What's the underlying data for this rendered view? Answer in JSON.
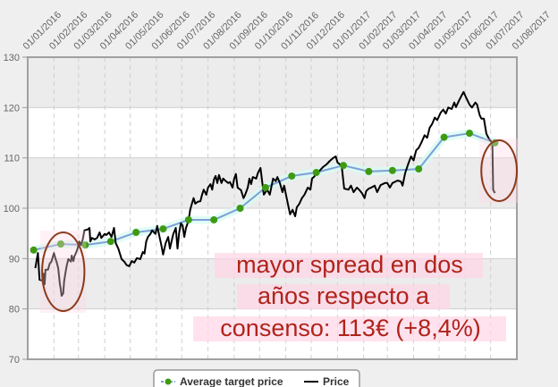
{
  "chart_data": {
    "type": "line",
    "x_type": "date",
    "xlim": [
      "2016-01-01",
      "2017-08-01"
    ],
    "ylim": [
      70,
      130
    ],
    "y_ticks": [
      70,
      80,
      90,
      100,
      110,
      120,
      130
    ],
    "x_tick_labels": [
      "01/01/2016",
      "01/02/2016",
      "01/03/2016",
      "01/04/2016",
      "01/05/2016",
      "01/06/2016",
      "01/07/2016",
      "01/08/2016",
      "01/09/2016",
      "01/10/2016",
      "01/11/2016",
      "01/12/2016",
      "01/01/2017",
      "01/02/2017",
      "01/03/2017",
      "01/04/2017",
      "01/05/2017",
      "01/06/2017",
      "01/07/2017",
      "01/08/2017"
    ],
    "grid": true,
    "legend_position": "bottom",
    "series": [
      {
        "name": "Average target price",
        "color": "#7f9fd8",
        "marker_color": "#3f9a12",
        "points": [
          [
            "2016-01-08",
            91.7
          ],
          [
            "2016-02-09",
            92.9
          ],
          [
            "2016-03-09",
            92.7
          ],
          [
            "2016-04-08",
            93.4
          ],
          [
            "2016-05-08",
            95.2
          ],
          [
            "2016-06-09",
            95.9
          ],
          [
            "2016-07-09",
            97.7
          ],
          [
            "2016-08-08",
            97.7
          ],
          [
            "2016-09-08",
            100.0
          ],
          [
            "2016-10-08",
            104.1
          ],
          [
            "2016-11-08",
            106.4
          ],
          [
            "2016-12-07",
            107.1
          ],
          [
            "2017-01-08",
            108.5
          ],
          [
            "2017-02-07",
            107.3
          ],
          [
            "2017-03-07",
            107.5
          ],
          [
            "2017-04-07",
            107.8
          ],
          [
            "2017-05-07",
            114.1
          ],
          [
            "2017-06-06",
            114.9
          ],
          [
            "2017-07-06",
            113.0
          ]
        ]
      },
      {
        "name": "Price",
        "color": "#000000",
        "points": [
          [
            "2016-01-10",
            88.1
          ],
          [
            "2016-01-13",
            91.1
          ],
          [
            "2016-01-15",
            85.8
          ],
          [
            "2016-01-18",
            85.6
          ],
          [
            "2016-01-20",
            87.0
          ],
          [
            "2016-01-21",
            84.9
          ],
          [
            "2016-01-22",
            87.8
          ],
          [
            "2016-01-25",
            87.8
          ],
          [
            "2016-01-27",
            89.0
          ],
          [
            "2016-01-29",
            89.4
          ],
          [
            "2016-02-01",
            91.1
          ],
          [
            "2016-02-03",
            89.9
          ],
          [
            "2016-02-04",
            89.4
          ],
          [
            "2016-02-06",
            88.1
          ],
          [
            "2016-02-08",
            84.9
          ],
          [
            "2016-02-09",
            84.0
          ],
          [
            "2016-02-10",
            82.6
          ],
          [
            "2016-02-12",
            83.1
          ],
          [
            "2016-02-13",
            85.5
          ],
          [
            "2016-02-15",
            87.6
          ],
          [
            "2016-02-16",
            88.5
          ],
          [
            "2016-02-18",
            89.9
          ],
          [
            "2016-02-21",
            89.4
          ],
          [
            "2016-02-22",
            90.6
          ],
          [
            "2016-02-24",
            89.5
          ],
          [
            "2016-02-25",
            90.4
          ],
          [
            "2016-02-27",
            91.1
          ],
          [
            "2016-02-29",
            92.0
          ],
          [
            "2016-03-02",
            93.4
          ],
          [
            "2016-03-04",
            92.7
          ],
          [
            "2016-03-06",
            93.8
          ],
          [
            "2016-03-08",
            95.6
          ],
          [
            "2016-03-12",
            95.8
          ],
          [
            "2016-03-14",
            96.1
          ],
          [
            "2016-03-15",
            93.4
          ],
          [
            "2016-03-17",
            94.1
          ],
          [
            "2016-03-20",
            93.8
          ],
          [
            "2016-03-23",
            94.1
          ],
          [
            "2016-03-26",
            95.2
          ],
          [
            "2016-03-28",
            94.1
          ],
          [
            "2016-04-01",
            94.9
          ],
          [
            "2016-04-03",
            94.7
          ],
          [
            "2016-04-06",
            95.2
          ],
          [
            "2016-04-09",
            94.3
          ],
          [
            "2016-04-12",
            96.1
          ],
          [
            "2016-04-14",
            93.1
          ],
          [
            "2016-04-17",
            92.0
          ],
          [
            "2016-04-21",
            89.9
          ],
          [
            "2016-04-24",
            89.4
          ],
          [
            "2016-04-27",
            88.7
          ],
          [
            "2016-04-30",
            88.5
          ],
          [
            "2016-05-03",
            89.5
          ],
          [
            "2016-05-06",
            89.2
          ],
          [
            "2016-05-09",
            90.1
          ],
          [
            "2016-05-13",
            89.9
          ],
          [
            "2016-05-16",
            91.3
          ],
          [
            "2016-05-18",
            91.0
          ],
          [
            "2016-05-20",
            93.4
          ],
          [
            "2016-05-22",
            94.3
          ],
          [
            "2016-05-25",
            94.9
          ],
          [
            "2016-05-27",
            95.6
          ],
          [
            "2016-05-31",
            94.9
          ],
          [
            "2016-06-02",
            96.5
          ],
          [
            "2016-06-04",
            94.9
          ],
          [
            "2016-06-07",
            92.6
          ],
          [
            "2016-06-09",
            90.8
          ],
          [
            "2016-06-12",
            93.1
          ],
          [
            "2016-06-15",
            94.3
          ],
          [
            "2016-06-17",
            92.0
          ],
          [
            "2016-06-21",
            94.9
          ],
          [
            "2016-06-24",
            96.1
          ],
          [
            "2016-06-26",
            92.0
          ],
          [
            "2016-06-28",
            95.2
          ],
          [
            "2016-06-30",
            97.0
          ],
          [
            "2016-07-02",
            96.6
          ],
          [
            "2016-07-04",
            94.3
          ],
          [
            "2016-07-06",
            96.1
          ],
          [
            "2016-07-09",
            97.5
          ],
          [
            "2016-07-11",
            99.7
          ],
          [
            "2016-07-13",
            100.9
          ],
          [
            "2016-07-15",
            102.0
          ],
          [
            "2016-07-17",
            100.9
          ],
          [
            "2016-07-20",
            101.3
          ],
          [
            "2016-07-23",
            101.4
          ],
          [
            "2016-07-25",
            102.7
          ],
          [
            "2016-07-27",
            103.7
          ],
          [
            "2016-07-30",
            102.7
          ],
          [
            "2016-08-01",
            104.1
          ],
          [
            "2016-08-04",
            104.8
          ],
          [
            "2016-08-06",
            103.7
          ],
          [
            "2016-08-08",
            105.7
          ],
          [
            "2016-08-10",
            106.4
          ],
          [
            "2016-08-12",
            105.0
          ],
          [
            "2016-08-14",
            106.6
          ],
          [
            "2016-08-17",
            105.0
          ],
          [
            "2016-08-19",
            105.9
          ],
          [
            "2016-08-22",
            105.4
          ],
          [
            "2016-08-25",
            105.0
          ],
          [
            "2016-08-27",
            105.2
          ],
          [
            "2016-08-30",
            104.1
          ],
          [
            "2016-09-01",
            105.9
          ],
          [
            "2016-09-03",
            106.8
          ],
          [
            "2016-09-05",
            104.1
          ],
          [
            "2016-09-09",
            103.6
          ],
          [
            "2016-09-12",
            102.0
          ],
          [
            "2016-09-14",
            102.7
          ],
          [
            "2016-09-17",
            104.1
          ],
          [
            "2016-09-19",
            105.9
          ],
          [
            "2016-09-21",
            104.8
          ],
          [
            "2016-09-23",
            106.2
          ],
          [
            "2016-09-27",
            105.9
          ],
          [
            "2016-09-29",
            107.0
          ],
          [
            "2016-10-02",
            108.0
          ],
          [
            "2016-10-06",
            102.7
          ],
          [
            "2016-10-10",
            103.7
          ],
          [
            "2016-10-13",
            102.7
          ],
          [
            "2016-10-17",
            105.9
          ],
          [
            "2016-10-20",
            105.4
          ],
          [
            "2016-10-22",
            106.2
          ],
          [
            "2016-10-25",
            105.0
          ],
          [
            "2016-10-28",
            103.2
          ],
          [
            "2016-10-30",
            104.5
          ],
          [
            "2016-11-02",
            102.0
          ],
          [
            "2016-11-06",
            98.8
          ],
          [
            "2016-11-09",
            99.7
          ],
          [
            "2016-11-12",
            98.4
          ],
          [
            "2016-11-14",
            100.2
          ],
          [
            "2016-11-17",
            100.9
          ],
          [
            "2016-11-20",
            102.0
          ],
          [
            "2016-11-23",
            102.7
          ],
          [
            "2016-11-27",
            104.1
          ],
          [
            "2016-11-30",
            103.7
          ],
          [
            "2016-12-02",
            105.9
          ],
          [
            "2016-12-04",
            106.2
          ],
          [
            "2016-12-07",
            106.8
          ],
          [
            "2016-12-10",
            107.3
          ],
          [
            "2016-12-15",
            108.2
          ],
          [
            "2016-12-19",
            108.7
          ],
          [
            "2016-12-23",
            109.4
          ],
          [
            "2016-12-27",
            110.0
          ],
          [
            "2016-12-30",
            110.3
          ],
          [
            "2017-01-01",
            109.1
          ],
          [
            "2017-01-06",
            108.4
          ],
          [
            "2017-01-09",
            103.9
          ],
          [
            "2017-01-14",
            103.7
          ],
          [
            "2017-01-17",
            104.5
          ],
          [
            "2017-01-20",
            103.2
          ],
          [
            "2017-01-24",
            104.1
          ],
          [
            "2017-01-27",
            103.6
          ],
          [
            "2017-01-30",
            103.0
          ],
          [
            "2017-02-02",
            102.0
          ],
          [
            "2017-02-04",
            103.4
          ],
          [
            "2017-02-07",
            103.9
          ],
          [
            "2017-02-10",
            104.1
          ],
          [
            "2017-02-14",
            104.5
          ],
          [
            "2017-02-17",
            103.2
          ],
          [
            "2017-02-21",
            104.6
          ],
          [
            "2017-02-26",
            105.0
          ],
          [
            "2017-03-01",
            105.0
          ],
          [
            "2017-03-04",
            104.1
          ],
          [
            "2017-03-07",
            105.0
          ],
          [
            "2017-03-13",
            105.5
          ],
          [
            "2017-03-17",
            105.3
          ],
          [
            "2017-03-19",
            104.5
          ],
          [
            "2017-03-22",
            107.0
          ],
          [
            "2017-03-26",
            109.0
          ],
          [
            "2017-03-29",
            110.3
          ],
          [
            "2017-04-01",
            109.5
          ],
          [
            "2017-04-04",
            111.5
          ],
          [
            "2017-04-07",
            112.0
          ],
          [
            "2017-04-10",
            113.0
          ],
          [
            "2017-04-14",
            114.5
          ],
          [
            "2017-04-17",
            114.0
          ],
          [
            "2017-04-20",
            116.0
          ],
          [
            "2017-04-23",
            116.8
          ],
          [
            "2017-04-26",
            118.0
          ],
          [
            "2017-04-29",
            117.5
          ],
          [
            "2017-05-03",
            119.0
          ],
          [
            "2017-05-06",
            119.6
          ],
          [
            "2017-05-09",
            118.8
          ],
          [
            "2017-05-12",
            120.0
          ],
          [
            "2017-05-16",
            119.7
          ],
          [
            "2017-05-19",
            121.0
          ],
          [
            "2017-05-21",
            120.1
          ],
          [
            "2017-05-25",
            121.5
          ],
          [
            "2017-05-28",
            122.5
          ],
          [
            "2017-05-30",
            123.1
          ],
          [
            "2017-06-02",
            122.0
          ],
          [
            "2017-06-06",
            120.6
          ],
          [
            "2017-06-09",
            120.0
          ],
          [
            "2017-06-13",
            121.0
          ],
          [
            "2017-06-15",
            120.6
          ],
          [
            "2017-06-18",
            118.5
          ],
          [
            "2017-06-20",
            117.8
          ],
          [
            "2017-06-23",
            117.8
          ],
          [
            "2017-06-26",
            114.8
          ],
          [
            "2017-06-29",
            113.8
          ],
          [
            "2017-07-03",
            113.0
          ],
          [
            "2017-07-04",
            103.7
          ],
          [
            "2017-07-06",
            103.0
          ]
        ]
      }
    ],
    "annotations": {
      "text_lines": [
        "mayor spread en dos",
        "años respecto a",
        "consenso: 113€ (+8,4%)"
      ],
      "text_color": "#b0231b",
      "highlight_color": "#ffd6e6",
      "circle_color": "#8b3a1a",
      "circled_ranges": [
        [
          "2016-01-18",
          "2016-03-08"
        ],
        [
          "2017-06-20",
          "2017-08-01"
        ]
      ]
    }
  },
  "legend": {
    "items": [
      {
        "label": "Average target price",
        "icon": "line-with-dot-icon"
      },
      {
        "label": "Price",
        "icon": "line-icon"
      }
    ]
  }
}
